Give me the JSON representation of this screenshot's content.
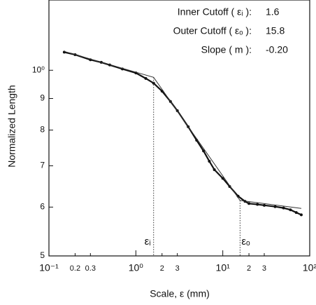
{
  "chart_data": {
    "type": "line",
    "log_x": true,
    "log_y": true,
    "xlabel": "Scale, ε (mm)",
    "ylabel": "Normalized Length",
    "xlim": [
      0.1,
      100
    ],
    "ylim": [
      0.5,
      1.3
    ],
    "xticks": [
      {
        "value": 0.1,
        "label": "10⁻¹"
      },
      0.2,
      0.3,
      {
        "value": 1,
        "label": "10⁰"
      },
      {
        "value": 2,
        "label": "2"
      },
      {
        "value": 3,
        "label": "3"
      },
      {
        "value": 10,
        "label": "10¹"
      },
      {
        "value": 20,
        "label": "2"
      },
      {
        "value": 30,
        "label": "3"
      },
      {
        "value": 100,
        "label": "10²"
      }
    ],
    "yticks": [
      {
        "value": 0.5,
        "label": "5"
      },
      {
        "value": 0.6,
        "label": "6"
      },
      {
        "value": 0.7,
        "label": "7"
      },
      {
        "value": 0.8,
        "label": "8"
      },
      {
        "value": 0.9,
        "label": "9"
      },
      {
        "value": 1,
        "label": "10⁰"
      }
    ],
    "series": [
      {
        "color": "#111111",
        "mode": "markers",
        "x": [
          0.15,
          0.2,
          0.3,
          0.4,
          0.5,
          0.7,
          1,
          1.3,
          1.6,
          2,
          2.5,
          3,
          4,
          5,
          6,
          7,
          8,
          10,
          12,
          15,
          18,
          20,
          25,
          30,
          40,
          50,
          60,
          70,
          80
        ],
        "values": [
          1.07,
          1.06,
          1.04,
          1.03,
          1.02,
          1.005,
          0.99,
          0.97,
          0.953,
          0.925,
          0.89,
          0.86,
          0.81,
          0.77,
          0.74,
          0.712,
          0.69,
          0.668,
          0.648,
          0.625,
          0.613,
          0.608,
          0.606,
          0.604,
          0.601,
          0.598,
          0.594,
          0.588,
          0.583
        ]
      },
      {
        "color": "#333333",
        "mode": "lines",
        "x": [
          0.15,
          1.6,
          15.8,
          80
        ],
        "values": [
          1.073,
          0.974,
          0.615,
          0.597
        ]
      }
    ],
    "cutoffs": [
      {
        "label": "εᵢ",
        "x": 1.6
      },
      {
        "label": "εₒ",
        "x": 15.8
      }
    ],
    "stats": [
      {
        "label": "Inner Cutoff ( εᵢ ):",
        "text": "1.6"
      },
      {
        "label": "Outer Cutoff ( εₒ ):",
        "text": "15.8"
      },
      {
        "label": "Slope ( m ):",
        "text": "-0.20"
      }
    ]
  }
}
